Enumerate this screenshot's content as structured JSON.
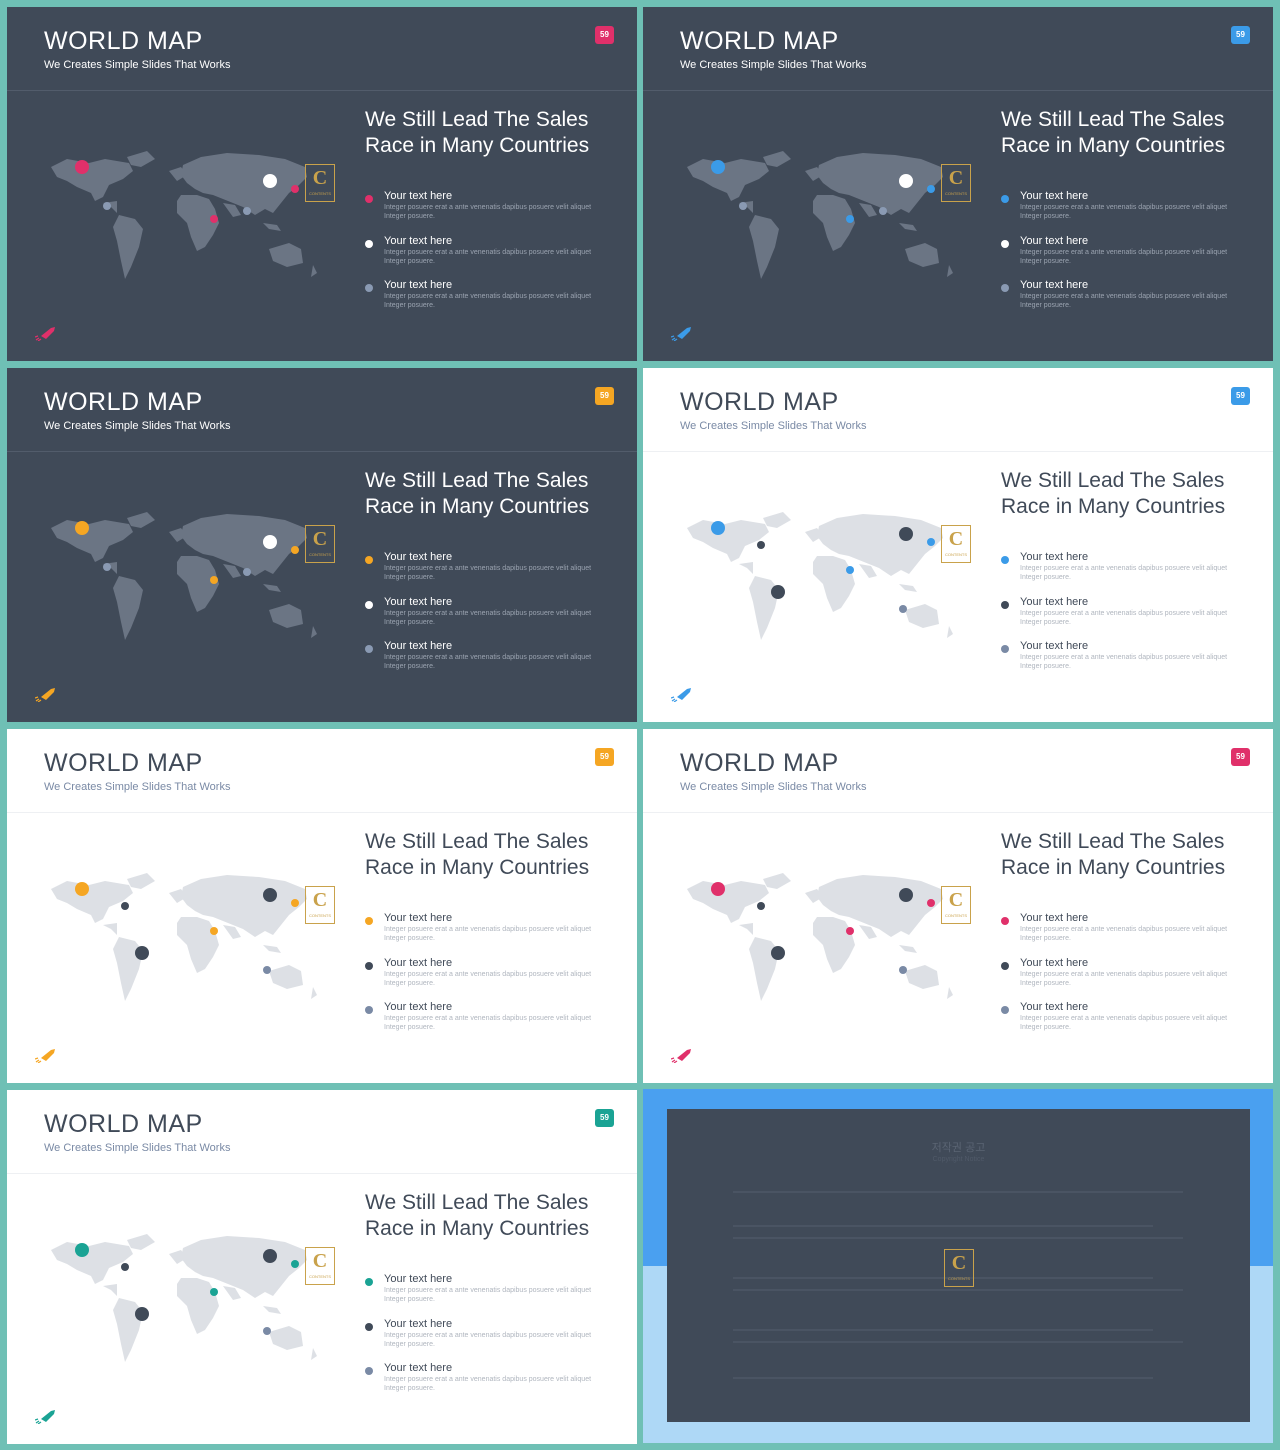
{
  "slides": [
    {
      "theme": "dark",
      "title": "WORLD MAP",
      "subtitle": "We Creates Simple Slides That Works",
      "badge": "59",
      "accent": "#e0306a",
      "headline_1": "We Still Lead The Sales",
      "headline_2": "Race in Many Countries",
      "items": [
        {
          "title": "Your text here",
          "text": "Integer posuere erat a ante venenatis dapibus posuere velit aliquet Integer posuere."
        },
        {
          "title": "Your text here",
          "text": "Integer posuere erat a ante venenatis dapibus posuere velit aliquet Integer posuere."
        },
        {
          "title": "Your text here",
          "text": "Integer posuere erat a ante venenatis dapibus posuere velit aliquet Integer posuere."
        }
      ]
    },
    {
      "theme": "dark",
      "title": "WORLD MAP",
      "subtitle": "We Creates Simple Slides That Works",
      "badge": "59",
      "accent": "#3b9be8",
      "headline_1": "We Still Lead The Sales",
      "headline_2": "Race in Many Countries",
      "items": [
        {
          "title": "Your text here",
          "text": "Integer posuere erat a ante venenatis dapibus posuere velit aliquet Integer posuere."
        },
        {
          "title": "Your text here",
          "text": "Integer posuere erat a ante venenatis dapibus posuere velit aliquet Integer posuere."
        },
        {
          "title": "Your text here",
          "text": "Integer posuere erat a ante venenatis dapibus posuere velit aliquet Integer posuere."
        }
      ]
    },
    {
      "theme": "dark",
      "title": "WORLD MAP",
      "subtitle": "We Creates Simple Slides That Works",
      "badge": "59",
      "accent": "#f5a623",
      "headline_1": "We Still Lead The Sales",
      "headline_2": "Race in Many Countries",
      "items": [
        {
          "title": "Your text here",
          "text": "Integer posuere erat a ante venenatis dapibus posuere velit aliquet Integer posuere."
        },
        {
          "title": "Your text here",
          "text": "Integer posuere erat a ante venenatis dapibus posuere velit aliquet Integer posuere."
        },
        {
          "title": "Your text here",
          "text": "Integer posuere erat a ante venenatis dapibus posuere velit aliquet Integer posuere."
        }
      ]
    },
    {
      "theme": "light",
      "title": "WORLD MAP",
      "subtitle": "We Creates Simple Slides That Works",
      "badge": "59",
      "accent": "#3b9be8",
      "headline_1": "We Still Lead The Sales",
      "headline_2": "Race in Many Countries",
      "items": [
        {
          "title": "Your text here",
          "text": "Integer posuere erat a ante venenatis dapibus posuere velit aliquet Integer posuere."
        },
        {
          "title": "Your text here",
          "text": "Integer posuere erat a ante venenatis dapibus posuere velit aliquet Integer posuere."
        },
        {
          "title": "Your text here",
          "text": "Integer posuere erat a ante venenatis dapibus posuere velit aliquet Integer posuere."
        }
      ]
    },
    {
      "theme": "light",
      "title": "WORLD MAP",
      "subtitle": "We Creates Simple Slides That Works",
      "badge": "59",
      "accent": "#f5a623",
      "headline_1": "We Still Lead The Sales",
      "headline_2": "Race in Many Countries",
      "items": [
        {
          "title": "Your text here",
          "text": "Integer posuere erat a ante venenatis dapibus posuere velit aliquet Integer posuere."
        },
        {
          "title": "Your text here",
          "text": "Integer posuere erat a ante venenatis dapibus posuere velit aliquet Integer posuere."
        },
        {
          "title": "Your text here",
          "text": "Integer posuere erat a ante venenatis dapibus posuere velit aliquet Integer posuere."
        }
      ]
    },
    {
      "theme": "light",
      "title": "WORLD MAP",
      "subtitle": "We Creates Simple Slides That Works",
      "badge": "59",
      "accent": "#e0306a",
      "headline_1": "We Still Lead The Sales",
      "headline_2": "Race in Many Countries",
      "items": [
        {
          "title": "Your text here",
          "text": "Integer posuere erat a ante venenatis dapibus posuere velit aliquet Integer posuere."
        },
        {
          "title": "Your text here",
          "text": "Integer posuere erat a ante venenatis dapibus posuere velit aliquet Integer posuere."
        },
        {
          "title": "Your text here",
          "text": "Integer posuere erat a ante venenatis dapibus posuere velit aliquet Integer posuere."
        }
      ]
    },
    {
      "theme": "light",
      "title": "WORLD MAP",
      "subtitle": "We Creates Simple Slides That Works",
      "badge": "59",
      "accent": "#1aa394",
      "headline_1": "We Still Lead The Sales",
      "headline_2": "Race in Many Countries",
      "items": [
        {
          "title": "Your text here",
          "text": "Integer posuere erat a ante venenatis dapibus posuere velit aliquet Integer posuere."
        },
        {
          "title": "Your text here",
          "text": "Integer posuere erat a ante venenatis dapibus posuere velit aliquet Integer posuere."
        },
        {
          "title": "Your text here",
          "text": "Integer posuere erat a ante venenatis dapibus posuere velit aliquet Integer posuere."
        }
      ]
    }
  ],
  "copyright": {
    "title": "저작권 공고",
    "subtitle": "Copyright Notice"
  },
  "colors": {
    "dark_bg": "#404a58",
    "light_bg": "#ffffff",
    "frame": "#6fc0b5",
    "logo_gold": "#c9a24b",
    "copyright_top": "#4aa0f0",
    "copyright_bottom": "#aed8f6"
  },
  "icons": [
    "rocket-icon",
    "logo-icon"
  ]
}
